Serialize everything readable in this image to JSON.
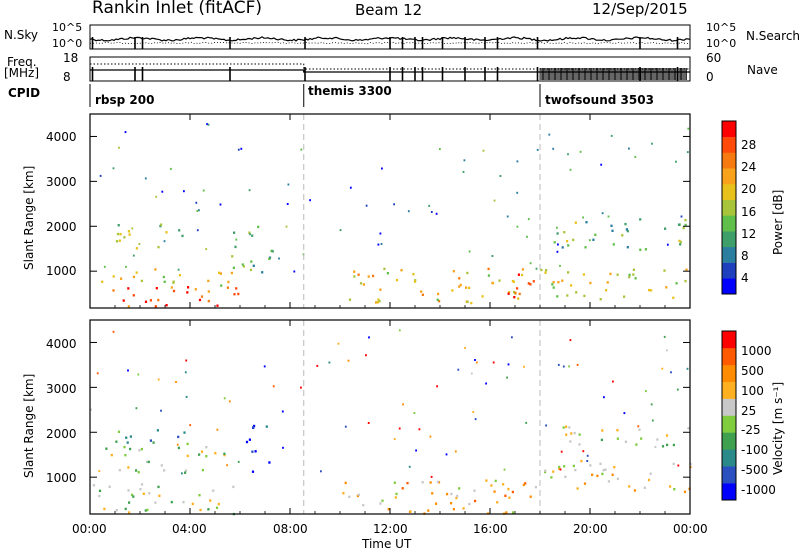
{
  "header": {
    "station_title": "Rankin Inlet (fitACF)",
    "beam_label": "Beam 12",
    "date_label": "12/Sep/2015"
  },
  "meta_panels": {
    "nsky_label": "N.Sky",
    "nsky_ticks": [
      "10^5",
      "10^0"
    ],
    "nsearch_label": "N.Search",
    "nsearch_ticks": [
      "10^5",
      "10^0"
    ],
    "freq_label": "Freq.",
    "freq_unit": "[MHz]",
    "freq_ticks": [
      "18",
      "8"
    ],
    "nave_label": "Nave",
    "nave_ticks": [
      "60",
      "0"
    ],
    "cpid_label": "CPID",
    "cpid_segments": [
      {
        "name": "rbsp 200",
        "start_hour": 0.0
      },
      {
        "name": "themis 3300",
        "start_hour": 8.55
      },
      {
        "name": "twofsound 3503",
        "start_hour": 18.0
      }
    ]
  },
  "colorbars": {
    "power": {
      "label": "Power [dB]",
      "ticks": [
        "28",
        "24",
        "20",
        "16",
        "12",
        "8",
        "4"
      ],
      "colors": [
        "#0000ff",
        "#1e3fbe",
        "#2a7fa0",
        "#3f9f6a",
        "#5fbf4a",
        "#a8c43a",
        "#e8c21a",
        "#f7a21a",
        "#f77a10",
        "#ff4a0a",
        "#ff0000"
      ]
    },
    "velocity": {
      "label": "Velocity [m s⁻¹]",
      "ticks": [
        "1000",
        "500",
        "100",
        "25",
        "-25",
        "-100",
        "-500",
        "-1000"
      ],
      "colors": [
        "#0000ff",
        "#2a4fbe",
        "#2a8a8a",
        "#3fa050",
        "#7fcc3f",
        "#c8c8c8",
        "#ffb020",
        "#ff8c00",
        "#ff5a00",
        "#ff0000"
      ]
    }
  },
  "axes": {
    "ylabel": "Slant Range [km]",
    "xlabel": "Time UT",
    "yticks": [
      "1000",
      "2000",
      "3000",
      "4000"
    ],
    "xticks": [
      "00:00",
      "04:00",
      "08:00",
      "12:00",
      "16:00",
      "20:00",
      "00:00"
    ]
  },
  "chart_data": [
    {
      "type": "heatmap",
      "name": "Power",
      "x_range_hours": [
        0,
        24
      ],
      "y_range_km": [
        180,
        4500
      ],
      "color_range_db": [
        0,
        30
      ],
      "regions": [
        {
          "t0": 0.1,
          "t1": 6.0,
          "r0": 200,
          "r1": 700,
          "value": 26
        },
        {
          "t0": 0.3,
          "t1": 5.8,
          "r0": 700,
          "r1": 1100,
          "value": 18
        },
        {
          "t0": 1.0,
          "t1": 4.0,
          "r0": 1500,
          "r1": 2100,
          "value": 14
        },
        {
          "t0": 5.6,
          "t1": 7.3,
          "r0": 1000,
          "r1": 2200,
          "value": 12
        },
        {
          "t0": 10.2,
          "t1": 17.5,
          "r0": 300,
          "r1": 1100,
          "value": 18
        },
        {
          "t0": 16.0,
          "t1": 18.0,
          "r0": 400,
          "r1": 1000,
          "value": 25
        },
        {
          "t0": 18.0,
          "t1": 24.0,
          "r0": 400,
          "r1": 1100,
          "value": 16
        },
        {
          "t0": 18.5,
          "t1": 24.0,
          "r0": 1500,
          "r1": 2200,
          "value": 12
        }
      ]
    },
    {
      "type": "heatmap",
      "name": "Velocity",
      "x_range_hours": [
        0,
        24
      ],
      "y_range_km": [
        180,
        4500
      ],
      "color_range_ms": [
        -1000,
        1000
      ],
      "regions": [
        {
          "t0": 0.1,
          "t1": 5.8,
          "r0": 200,
          "r1": 900,
          "value": 50
        },
        {
          "t0": 0.5,
          "t1": 5.5,
          "r0": 1100,
          "r1": 1700,
          "value": 0
        },
        {
          "t0": 1.0,
          "t1": 4.0,
          "r0": 1600,
          "r1": 2100,
          "value": 400
        },
        {
          "t0": 6.2,
          "t1": 7.2,
          "r0": 1000,
          "r1": 2200,
          "value": 800
        },
        {
          "t0": 10.0,
          "t1": 18.0,
          "r0": 200,
          "r1": 1000,
          "value": -300
        },
        {
          "t0": 18.0,
          "t1": 24.0,
          "r0": 700,
          "r1": 1400,
          "value": -200
        },
        {
          "t0": 18.5,
          "t1": 24.0,
          "r0": 1700,
          "r1": 2200,
          "value": 0
        }
      ]
    }
  ]
}
